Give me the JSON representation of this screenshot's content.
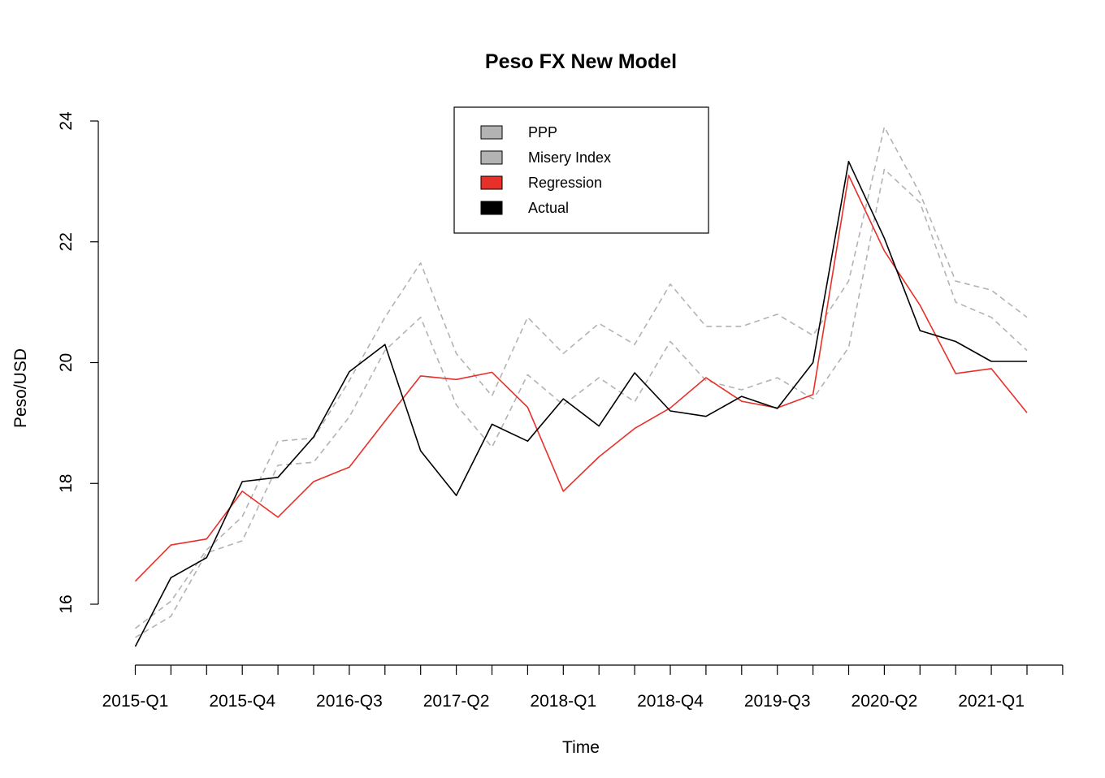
{
  "chart_data": {
    "type": "line",
    "title": "Peso FX New Model",
    "xlabel": "Time",
    "ylabel": "Peso/USD",
    "x": [
      "2015-Q1",
      "2015-Q2",
      "2015-Q3",
      "2015-Q4",
      "2016-Q1",
      "2016-Q2",
      "2016-Q3",
      "2016-Q4",
      "2017-Q1",
      "2017-Q2",
      "2017-Q3",
      "2017-Q4",
      "2018-Q1",
      "2018-Q2",
      "2018-Q3",
      "2018-Q4",
      "2019-Q1",
      "2019-Q2",
      "2019-Q3",
      "2019-Q4",
      "2020-Q1",
      "2020-Q2",
      "2020-Q3",
      "2020-Q4",
      "2021-Q1",
      "2021-Q2"
    ],
    "x_tick_labels": [
      "2015-Q1",
      "2015-Q4",
      "2016-Q3",
      "2017-Q2",
      "2018-Q1",
      "2018-Q4",
      "2019-Q3",
      "2020-Q2",
      "2021-Q1"
    ],
    "ylim": [
      15,
      24
    ],
    "y_ticks": [
      16,
      18,
      20,
      22,
      24
    ],
    "legend_position": "top-center",
    "series": [
      {
        "name": "PPP",
        "color": "#b3b3b3",
        "dash": "dashed",
        "values": [
          15.6,
          16.05,
          16.9,
          17.45,
          18.7,
          18.75,
          19.7,
          20.75,
          21.65,
          20.15,
          19.45,
          20.75,
          20.15,
          20.65,
          20.3,
          21.3,
          20.6,
          20.6,
          20.8,
          20.45,
          21.35,
          23.9,
          22.8,
          21.35,
          21.2,
          20.75
        ]
      },
      {
        "name": "Misery Index",
        "color": "#b3b3b3",
        "dash": "dashed",
        "values": [
          15.45,
          15.8,
          16.85,
          17.05,
          18.3,
          18.35,
          19.1,
          20.2,
          20.75,
          19.3,
          18.6,
          19.8,
          19.3,
          19.75,
          19.35,
          20.35,
          19.7,
          19.55,
          19.75,
          19.4,
          20.25,
          23.2,
          22.65,
          21.0,
          20.75,
          20.2
        ]
      },
      {
        "name": "Regression",
        "color": "#e8302a",
        "dash": "solid",
        "values": [
          16.38,
          16.98,
          17.08,
          17.87,
          17.44,
          18.03,
          18.27,
          19.03,
          19.78,
          19.72,
          19.84,
          19.26,
          17.87,
          18.44,
          18.91,
          19.25,
          19.75,
          19.36,
          19.25,
          19.47,
          23.1,
          21.85,
          20.95,
          19.82,
          19.9,
          19.17
        ]
      },
      {
        "name": "Actual",
        "color": "#000000",
        "dash": "solid",
        "values": [
          15.3,
          16.44,
          16.77,
          18.03,
          18.1,
          18.77,
          19.85,
          20.3,
          18.54,
          17.8,
          18.98,
          18.7,
          19.4,
          18.95,
          19.83,
          19.2,
          19.11,
          19.44,
          19.24,
          20.0,
          23.33,
          22.06,
          20.53,
          20.35,
          20.02,
          20.02
        ]
      }
    ],
    "legend_fill_colors": {
      "PPP": "#b3b3b3",
      "Misery Index": "#b3b3b3",
      "Regression": "#e8302a",
      "Actual": "#000000"
    }
  }
}
